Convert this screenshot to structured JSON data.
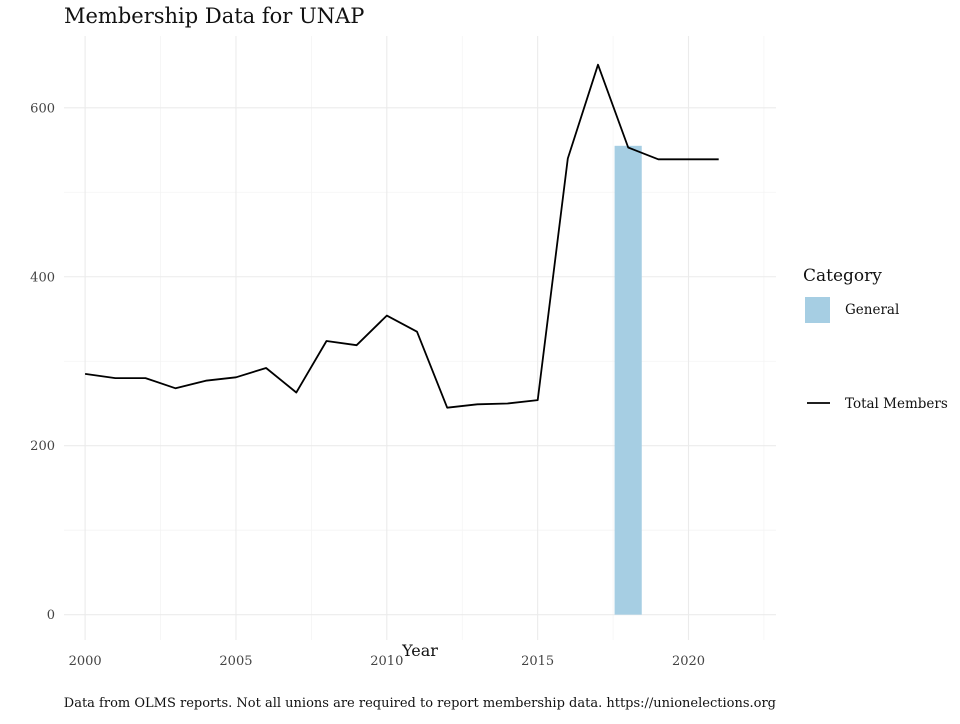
{
  "chart_data": {
    "type": "line",
    "title": "Membership Data for UNAP",
    "xlabel": "Year",
    "ylabel": "",
    "caption": "Data from OLMS reports. Not all unions are required to report membership data. https://unionelections.org",
    "xlim": [
      1999.3,
      2022.9
    ],
    "ylim": [
      -30,
      685
    ],
    "x_ticks": [
      2000,
      2005,
      2010,
      2015,
      2020
    ],
    "y_ticks": [
      0,
      200,
      400,
      600
    ],
    "grid": true,
    "legend": {
      "title": "Category",
      "position": "right",
      "entries": [
        {
          "label": "General",
          "kind": "bar",
          "color": "#a6cee3"
        },
        {
          "label": "Total Members",
          "kind": "line",
          "color": "#000000"
        }
      ]
    },
    "line_series": {
      "name": "Total Members",
      "color": "#000000",
      "x": [
        2000,
        2001,
        2002,
        2003,
        2004,
        2005,
        2006,
        2007,
        2008,
        2009,
        2010,
        2011,
        2012,
        2013,
        2014,
        2015,
        2016,
        2017,
        2018,
        2019,
        2020,
        2021
      ],
      "y": [
        285,
        280,
        280,
        268,
        277,
        281,
        292,
        263,
        324,
        319,
        354,
        335,
        245,
        249,
        250,
        254,
        540,
        651,
        553,
        539,
        539,
        539
      ]
    },
    "bar_series": {
      "name": "General",
      "color": "#a6cee3",
      "x": [
        2018
      ],
      "y": [
        555
      ],
      "width": 0.9
    }
  }
}
